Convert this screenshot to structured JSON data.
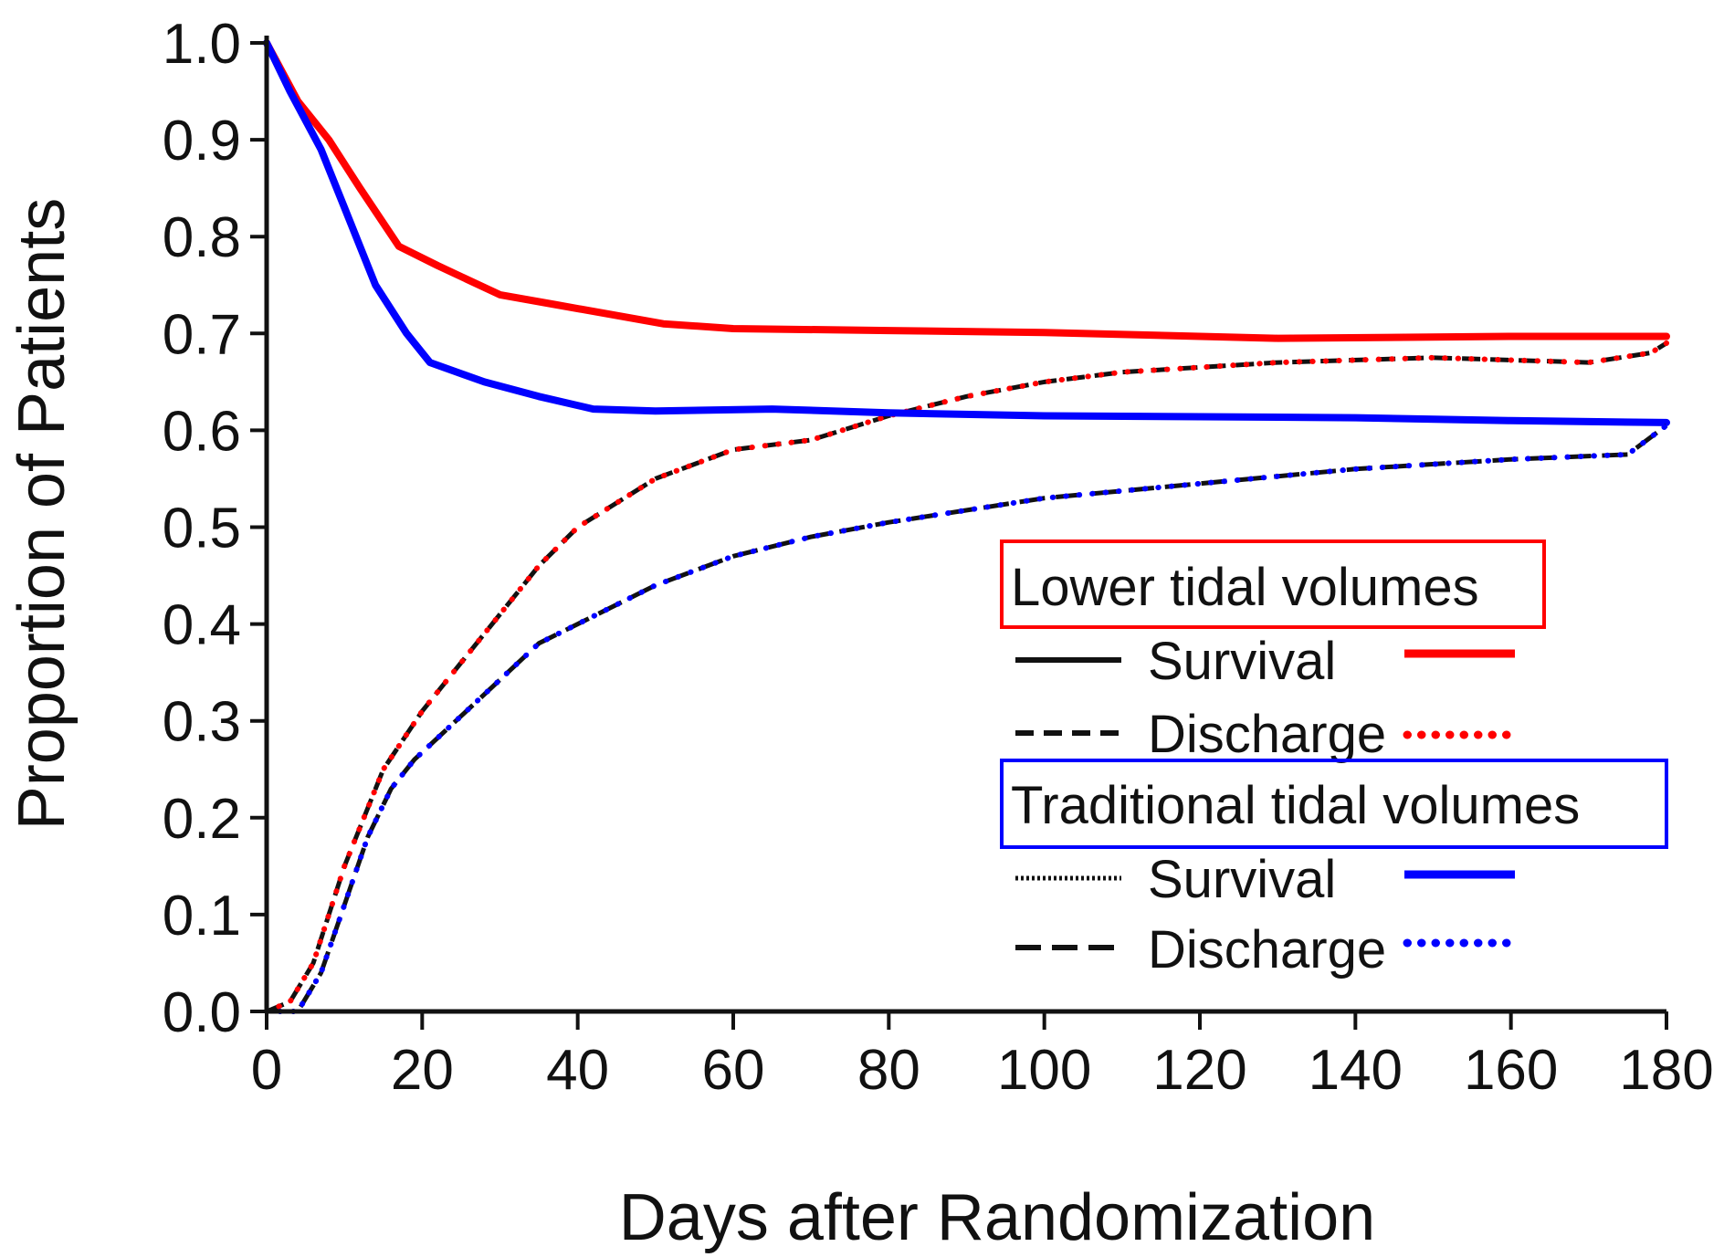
{
  "colors": {
    "lower": "#ff0000",
    "traditional": "#0000ff",
    "axis": "#111111",
    "black_lines": "#111111"
  },
  "chart_data": {
    "type": "line",
    "title": "",
    "xlabel": "Days after Randomization",
    "ylabel": "Proportion of Patients",
    "xlim": [
      0,
      180
    ],
    "ylim": [
      0,
      1.0
    ],
    "x_ticks": [
      0,
      20,
      40,
      60,
      80,
      100,
      120,
      140,
      160,
      180
    ],
    "x_tick_labels": [
      "0",
      "20",
      "40",
      "60",
      "80",
      "100",
      "120",
      "140",
      "160",
      "180"
    ],
    "y_ticks": [
      0,
      0.1,
      0.2,
      0.3,
      0.4,
      0.5,
      0.6,
      0.7,
      0.8,
      0.9,
      1.0
    ],
    "y_tick_labels": [
      "0.0",
      "0.1",
      "0.2",
      "0.3",
      "0.4",
      "0.5",
      "0.6",
      "0.7",
      "0.8",
      "0.9",
      "1.0"
    ],
    "grid": false,
    "legend_position": "lower-right",
    "legend": {
      "groups": [
        {
          "title": "Lower tidal volumes",
          "color_key": "lower",
          "entries": [
            {
              "label": "Survival",
              "style": "solid"
            },
            {
              "label": "Discharge",
              "style": "dotted"
            }
          ]
        },
        {
          "title": "Traditional tidal volumes",
          "color_key": "traditional",
          "entries": [
            {
              "label": "Survival",
              "style": "solid"
            },
            {
              "label": "Discharge",
              "style": "dotted"
            }
          ]
        }
      ]
    },
    "series": [
      {
        "group": "Lower tidal volumes",
        "name": "Survival",
        "style": "solid",
        "color_key": "lower",
        "x": [
          0,
          4,
          8,
          12,
          17,
          22,
          30,
          37,
          44,
          51,
          60,
          80,
          100,
          130,
          160,
          180
        ],
        "y": [
          1.0,
          0.94,
          0.9,
          0.85,
          0.79,
          0.77,
          0.74,
          0.73,
          0.72,
          0.71,
          0.705,
          0.703,
          0.701,
          0.695,
          0.697,
          0.697
        ]
      },
      {
        "group": "Lower tidal volumes",
        "name": "Discharge",
        "style": "dotted",
        "color_key": "lower",
        "x": [
          0,
          3,
          6,
          10,
          15,
          20,
          25,
          30,
          35,
          40,
          50,
          60,
          70,
          80,
          90,
          100,
          110,
          120,
          130,
          150,
          170,
          178,
          180
        ],
        "y": [
          0.0,
          0.01,
          0.05,
          0.15,
          0.25,
          0.31,
          0.36,
          0.41,
          0.46,
          0.5,
          0.55,
          0.58,
          0.59,
          0.615,
          0.635,
          0.65,
          0.66,
          0.665,
          0.67,
          0.675,
          0.67,
          0.68,
          0.69
        ]
      },
      {
        "group": "Traditional tidal volumes",
        "name": "Survival",
        "style": "solid",
        "color_key": "traditional",
        "x": [
          0,
          3,
          7,
          10,
          14,
          18,
          21,
          28,
          35,
          42,
          50,
          65,
          80,
          100,
          120,
          140,
          160,
          180
        ],
        "y": [
          1.0,
          0.95,
          0.89,
          0.83,
          0.75,
          0.7,
          0.67,
          0.65,
          0.635,
          0.622,
          0.62,
          0.622,
          0.618,
          0.615,
          0.614,
          0.613,
          0.61,
          0.608
        ]
      },
      {
        "group": "Traditional tidal volumes",
        "name": "Discharge",
        "style": "dotted",
        "color_key": "traditional",
        "x": [
          0,
          4,
          7,
          10,
          13,
          16,
          19,
          23,
          27,
          31,
          35,
          40,
          50,
          60,
          70,
          80,
          100,
          120,
          140,
          160,
          175,
          180
        ],
        "y": [
          0.0,
          0.0,
          0.04,
          0.11,
          0.18,
          0.23,
          0.26,
          0.29,
          0.32,
          0.35,
          0.38,
          0.4,
          0.44,
          0.47,
          0.49,
          0.505,
          0.53,
          0.545,
          0.56,
          0.57,
          0.575,
          0.605
        ]
      }
    ]
  }
}
